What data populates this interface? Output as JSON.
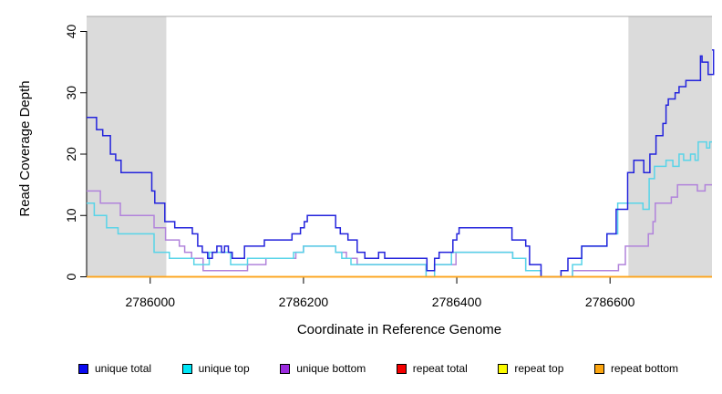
{
  "chart_data": {
    "type": "line",
    "subtype": "step",
    "title": "",
    "xlabel": "Coordinate in Reference Genome",
    "ylabel": "Read Coverage Depth",
    "xlim": [
      2785917,
      2786733
    ],
    "ylim": [
      0,
      40
    ],
    "x_ticks": [
      2786000,
      2786200,
      2786400,
      2786600
    ],
    "y_ticks": [
      0,
      10,
      20,
      30,
      40
    ],
    "grid": false,
    "legend_position": "bottom",
    "shaded_bands": {
      "color": "#DBDBDB",
      "regions": [
        [
          2785917,
          2786021
        ],
        [
          2786624,
          2786733
        ]
      ]
    },
    "frame": {
      "top_line_color": "#A8A8A8",
      "axis_color": "#000000"
    },
    "series": [
      {
        "name": "unique total",
        "color": "#0A0AF0",
        "stroke": "#2323DC",
        "points": [
          [
            2785917,
            26
          ],
          [
            2785930,
            24
          ],
          [
            2785938,
            23
          ],
          [
            2785948,
            20
          ],
          [
            2785955,
            19
          ],
          [
            2785962,
            17
          ],
          [
            2786002,
            14
          ],
          [
            2786006,
            12
          ],
          [
            2786019,
            9
          ],
          [
            2786032,
            8
          ],
          [
            2786055,
            7
          ],
          [
            2786062,
            5
          ],
          [
            2786068,
            4
          ],
          [
            2786075,
            3
          ],
          [
            2786081,
            4
          ],
          [
            2786087,
            5
          ],
          [
            2786093,
            4
          ],
          [
            2786097,
            5
          ],
          [
            2786102,
            4
          ],
          [
            2786107,
            3
          ],
          [
            2786123,
            5
          ],
          [
            2786149,
            6
          ],
          [
            2786185,
            7
          ],
          [
            2786196,
            8
          ],
          [
            2786201,
            9
          ],
          [
            2786205,
            10
          ],
          [
            2786242,
            8
          ],
          [
            2786248,
            7
          ],
          [
            2786258,
            6
          ],
          [
            2786270,
            4
          ],
          [
            2786280,
            3
          ],
          [
            2786298,
            4
          ],
          [
            2786306,
            3
          ],
          [
            2786361,
            1
          ],
          [
            2786371,
            3
          ],
          [
            2786377,
            4
          ],
          [
            2786395,
            6
          ],
          [
            2786400,
            7
          ],
          [
            2786403,
            8
          ],
          [
            2786472,
            6
          ],
          [
            2786490,
            5
          ],
          [
            2786495,
            2
          ],
          [
            2786510,
            0
          ],
          [
            2786536,
            1
          ],
          [
            2786545,
            3
          ],
          [
            2786563,
            5
          ],
          [
            2786596,
            7
          ],
          [
            2786608,
            11
          ],
          [
            2786623,
            17
          ],
          [
            2786631,
            19
          ],
          [
            2786644,
            17
          ],
          [
            2786652,
            20
          ],
          [
            2786660,
            23
          ],
          [
            2786669,
            25
          ],
          [
            2786673,
            28
          ],
          [
            2786676,
            29
          ],
          [
            2786685,
            30
          ],
          [
            2786690,
            31
          ],
          [
            2786699,
            32
          ],
          [
            2786718,
            36
          ],
          [
            2786720,
            35
          ],
          [
            2786728,
            33
          ],
          [
            2786735,
            37
          ]
        ]
      },
      {
        "name": "unique top",
        "color": "#00E6F6",
        "stroke": "#58D4E8",
        "points": [
          [
            2785917,
            12
          ],
          [
            2785927,
            10
          ],
          [
            2785943,
            8
          ],
          [
            2785958,
            7
          ],
          [
            2786005,
            4
          ],
          [
            2786025,
            3
          ],
          [
            2786057,
            2
          ],
          [
            2786077,
            4
          ],
          [
            2786105,
            2
          ],
          [
            2786127,
            3
          ],
          [
            2786187,
            4
          ],
          [
            2786200,
            5
          ],
          [
            2786242,
            4
          ],
          [
            2786250,
            3
          ],
          [
            2786262,
            2
          ],
          [
            2786360,
            0
          ],
          [
            2786371,
            2
          ],
          [
            2786393,
            4
          ],
          [
            2786473,
            3
          ],
          [
            2786490,
            1
          ],
          [
            2786510,
            0
          ],
          [
            2786551,
            2
          ],
          [
            2786563,
            5
          ],
          [
            2786596,
            7
          ],
          [
            2786610,
            12
          ],
          [
            2786643,
            11
          ],
          [
            2786651,
            16
          ],
          [
            2786658,
            18
          ],
          [
            2786673,
            19
          ],
          [
            2786682,
            18
          ],
          [
            2786690,
            20
          ],
          [
            2786696,
            19
          ],
          [
            2786705,
            20
          ],
          [
            2786711,
            19
          ],
          [
            2786715,
            22
          ],
          [
            2786726,
            21
          ],
          [
            2786730,
            22
          ]
        ]
      },
      {
        "name": "unique bottom",
        "color": "#9B2BDE",
        "stroke": "#B183DB",
        "points": [
          [
            2785917,
            14
          ],
          [
            2785935,
            12
          ],
          [
            2785961,
            10
          ],
          [
            2786005,
            8
          ],
          [
            2786020,
            6
          ],
          [
            2786038,
            5
          ],
          [
            2786045,
            4
          ],
          [
            2786054,
            3
          ],
          [
            2786069,
            1
          ],
          [
            2786127,
            2
          ],
          [
            2786151,
            3
          ],
          [
            2786190,
            4
          ],
          [
            2786200,
            5
          ],
          [
            2786242,
            4
          ],
          [
            2786256,
            3
          ],
          [
            2786270,
            2
          ],
          [
            2786360,
            1
          ],
          [
            2786371,
            2
          ],
          [
            2786399,
            4
          ],
          [
            2786473,
            3
          ],
          [
            2786490,
            1
          ],
          [
            2786510,
            0
          ],
          [
            2786551,
            1
          ],
          [
            2786611,
            2
          ],
          [
            2786620,
            5
          ],
          [
            2786650,
            7
          ],
          [
            2786656,
            9
          ],
          [
            2786659,
            12
          ],
          [
            2786680,
            13
          ],
          [
            2786688,
            15
          ],
          [
            2786714,
            14
          ],
          [
            2786724,
            15
          ]
        ]
      },
      {
        "name": "repeat total",
        "color": "#F40000",
        "stroke": "#DD0000",
        "points": [
          [
            2785917,
            0
          ]
        ]
      },
      {
        "name": "repeat top",
        "color": "#FBFB00",
        "stroke": "#FFFF00",
        "points": [
          [
            2785917,
            0
          ]
        ]
      },
      {
        "name": "repeat bottom",
        "color": "#FCA510",
        "stroke": "#FFA11C",
        "points": [
          [
            2785917,
            0
          ]
        ]
      }
    ]
  }
}
